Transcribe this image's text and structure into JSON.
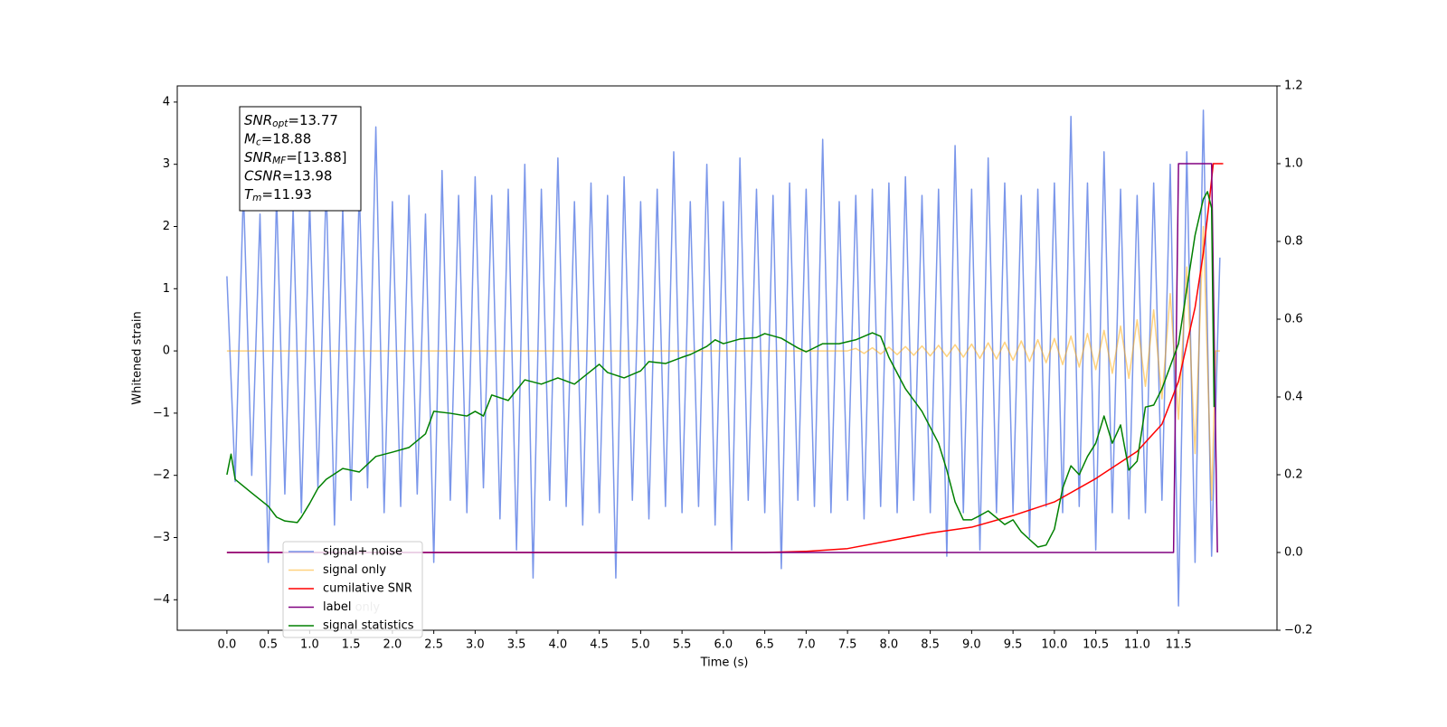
{
  "chart_data": {
    "type": "line",
    "xlabel": "Time (s)",
    "ylabel": "Whitened strain",
    "xlim": [
      -0.6,
      12.69
    ],
    "ylim": [
      -4.49,
      4.26
    ],
    "y2lim": [
      -0.2,
      1.2
    ],
    "xticks": [
      {
        "value": 0,
        "label": "0.0"
      },
      0.5,
      {
        "value": 1,
        "label": "1.0"
      },
      1.5,
      {
        "value": 2,
        "label": "2.0"
      },
      2.5,
      {
        "value": 3,
        "label": "3.0"
      },
      3.5,
      {
        "value": 4,
        "label": "4.0"
      },
      4.5,
      {
        "value": 5,
        "label": "5.0"
      },
      5.5,
      {
        "value": 6,
        "label": "6.0"
      },
      6.5,
      {
        "value": 7,
        "label": "7.0"
      },
      7.5,
      {
        "value": 8,
        "label": "8.0"
      },
      8.5,
      {
        "value": 9,
        "label": "9.0"
      },
      9.5,
      {
        "value": 10,
        "label": "10.0"
      },
      10.5,
      {
        "value": 11,
        "label": "11.0"
      },
      11.5
    ],
    "yticks": [
      {
        "value": -4,
        "label": "−4"
      },
      {
        "value": -3,
        "label": "−3"
      },
      {
        "value": -2,
        "label": "−2"
      },
      {
        "value": -1,
        "label": "−1"
      },
      0,
      1,
      2,
      3,
      4
    ],
    "y2ticks": [
      {
        "value": -0.2,
        "label": "−0.2"
      },
      {
        "value": 0,
        "label": "0.0"
      },
      0.2,
      0.4,
      0.6,
      0.8,
      {
        "value": 1,
        "label": "1.0"
      },
      1.2
    ],
    "legend": "lower left",
    "hidden_legend_text": "label only",
    "annotation": [
      {
        "base": "SNR",
        "sub": "opt",
        "rest": "=13.77"
      },
      {
        "base": "M",
        "sub": "c",
        "rest": "=18.88"
      },
      {
        "base": "SNR",
        "sub": "MF",
        "rest": "=[13.88]"
      },
      {
        "base": "CSNR",
        "sub": "",
        "rest": "=13.98"
      },
      {
        "base": "T",
        "sub": "m",
        "rest": "=11.93"
      }
    ],
    "series": [
      {
        "name": "signal+ noise",
        "color": "#4169e1",
        "opacity": 0.7,
        "x": [
          0.0,
          0.1,
          0.2,
          0.3,
          0.4,
          0.5,
          0.6,
          0.7,
          0.8,
          0.9,
          1.0,
          1.1,
          1.2,
          1.3,
          1.4,
          1.5,
          1.6,
          1.7,
          1.8,
          1.9,
          2.0,
          2.1,
          2.2,
          2.3,
          2.4,
          2.5,
          2.6,
          2.7,
          2.8,
          2.9,
          3.0,
          3.1,
          3.2,
          3.3,
          3.4,
          3.5,
          3.6,
          3.7,
          3.8,
          3.9,
          4.0,
          4.1,
          4.2,
          4.3,
          4.4,
          4.5,
          4.6,
          4.7,
          4.8,
          4.9,
          5.0,
          5.1,
          5.2,
          5.3,
          5.4,
          5.5,
          5.6,
          5.7,
          5.8,
          5.9,
          6.0,
          6.1,
          6.2,
          6.3,
          6.4,
          6.5,
          6.6,
          6.7,
          6.8,
          6.9,
          7.0,
          7.1,
          7.2,
          7.3,
          7.4,
          7.5,
          7.6,
          7.7,
          7.8,
          7.9,
          8.0,
          8.1,
          8.2,
          8.3,
          8.4,
          8.5,
          8.6,
          8.7,
          8.8,
          8.9,
          9.0,
          9.1,
          9.2,
          9.3,
          9.4,
          9.5,
          9.6,
          9.7,
          9.8,
          9.9,
          10.0,
          10.1,
          10.2,
          10.3,
          10.4,
          10.5,
          10.6,
          10.7,
          10.8,
          10.9,
          11.0,
          11.1,
          11.2,
          11.3,
          11.4,
          11.5,
          11.6,
          11.7,
          11.8,
          11.9,
          12.0
        ],
        "values": [
          1.2,
          -2.1,
          2.6,
          -2.0,
          2.2,
          -3.4,
          2.5,
          -2.3,
          2.3,
          -2.6,
          2.4,
          -2.2,
          2.7,
          -2.8,
          2.3,
          -2.4,
          2.6,
          -2.2,
          3.6,
          -2.6,
          2.4,
          -2.5,
          2.5,
          -2.3,
          2.2,
          -3.4,
          2.9,
          -2.4,
          2.5,
          -2.6,
          2.8,
          -2.2,
          2.5,
          -2.7,
          2.6,
          -3.2,
          3.0,
          -3.65,
          2.6,
          -2.4,
          3.1,
          -2.5,
          2.4,
          -2.8,
          2.7,
          -2.6,
          2.5,
          -3.65,
          2.8,
          -2.4,
          2.4,
          -2.7,
          2.6,
          -2.5,
          3.2,
          -2.6,
          2.4,
          -2.5,
          3.0,
          -2.8,
          2.4,
          -3.2,
          3.1,
          -2.4,
          2.6,
          -2.6,
          2.5,
          -3.5,
          2.7,
          -2.4,
          2.6,
          -2.5,
          3.4,
          -2.6,
          2.4,
          -2.4,
          2.5,
          -2.7,
          2.6,
          -2.5,
          2.7,
          -2.6,
          2.8,
          -2.4,
          2.5,
          -2.6,
          2.6,
          -3.3,
          3.3,
          -2.6,
          2.6,
          -3.2,
          3.1,
          -2.6,
          2.7,
          -2.6,
          2.5,
          -3.0,
          2.6,
          -2.5,
          2.7,
          -2.6,
          3.77,
          -2.5,
          2.7,
          -3.2,
          3.2,
          -2.6,
          2.6,
          -2.7,
          2.5,
          -2.6,
          2.7,
          -2.4,
          3.0,
          -4.1,
          3.2,
          -3.4,
          3.87,
          -3.3,
          1.5
        ]
      },
      {
        "name": "signal only",
        "color": "#ffa500",
        "opacity": 0.5,
        "x": [
          0.0,
          7.5,
          7.6,
          7.7,
          7.8,
          7.9,
          8.0,
          8.1,
          8.2,
          8.3,
          8.4,
          8.5,
          8.6,
          8.7,
          8.8,
          8.9,
          9.0,
          9.1,
          9.2,
          9.3,
          9.4,
          9.5,
          9.6,
          9.7,
          9.8,
          9.9,
          10.0,
          10.1,
          10.2,
          10.3,
          10.4,
          10.5,
          10.6,
          10.7,
          10.8,
          10.9,
          11.0,
          11.1,
          11.2,
          11.3,
          11.4,
          11.5,
          11.6,
          11.7,
          11.8,
          11.9,
          11.95,
          12.0
        ],
        "values": [
          0,
          0,
          0.04,
          -0.04,
          0.05,
          -0.05,
          0.06,
          -0.06,
          0.07,
          -0.07,
          0.08,
          -0.08,
          0.09,
          -0.09,
          0.1,
          -0.1,
          0.11,
          -0.12,
          0.13,
          -0.13,
          0.14,
          -0.15,
          0.16,
          -0.17,
          0.18,
          -0.19,
          0.2,
          -0.22,
          0.24,
          -0.26,
          0.28,
          -0.3,
          0.33,
          -0.36,
          0.4,
          -0.44,
          0.5,
          -0.57,
          0.66,
          -0.77,
          0.92,
          -1.1,
          1.35,
          -1.65,
          2.0,
          -2.4,
          0,
          0
        ]
      },
      {
        "name": "cumilative SNR",
        "color": "#ff0000",
        "axis": "y2",
        "x": [
          0,
          6.5,
          7.0,
          7.5,
          8.0,
          8.5,
          9.0,
          9.5,
          10.0,
          10.5,
          11.0,
          11.3,
          11.5,
          11.7,
          11.8,
          11.87,
          11.92,
          12.04
        ],
        "values": [
          0,
          0,
          0.003,
          0.01,
          0.03,
          0.05,
          0.065,
          0.095,
          0.13,
          0.19,
          0.26,
          0.33,
          0.44,
          0.63,
          0.77,
          0.9,
          1.0,
          1.0
        ]
      },
      {
        "name": "label",
        "color": "#800080",
        "axis": "y2",
        "x": [
          0,
          11.44,
          11.5,
          11.9,
          11.97
        ],
        "values": [
          0,
          0,
          1,
          1,
          0
        ]
      },
      {
        "name": "signal statistics",
        "color": "#008000",
        "axis": "y2",
        "x": [
          0,
          0.05,
          0.1,
          0.3,
          0.5,
          0.6,
          0.7,
          0.85,
          0.9,
          1.0,
          1.1,
          1.2,
          1.4,
          1.6,
          1.8,
          2.0,
          2.2,
          2.4,
          2.5,
          2.7,
          2.9,
          3.0,
          3.1,
          3.2,
          3.4,
          3.6,
          3.8,
          4.0,
          4.2,
          4.4,
          4.5,
          4.6,
          4.8,
          5.0,
          5.1,
          5.3,
          5.5,
          5.6,
          5.8,
          5.9,
          6.0,
          6.2,
          6.4,
          6.5,
          6.7,
          6.9,
          7.0,
          7.2,
          7.4,
          7.6,
          7.8,
          7.9,
          8.0,
          8.2,
          8.4,
          8.6,
          8.7,
          8.8,
          8.9,
          9.0,
          9.1,
          9.2,
          9.4,
          9.5,
          9.6,
          9.8,
          9.9,
          10.0,
          10.1,
          10.2,
          10.3,
          10.4,
          10.5,
          10.6,
          10.7,
          10.8,
          10.9,
          11.0,
          11.1,
          11.2,
          11.3,
          11.4,
          11.5,
          11.6,
          11.7,
          11.8,
          11.85,
          11.9,
          11.93
        ],
        "values": [
          0.2,
          0.253,
          0.188,
          0.153,
          0.119,
          0.091,
          0.081,
          0.077,
          0.091,
          0.126,
          0.165,
          0.188,
          0.216,
          0.207,
          0.247,
          0.258,
          0.27,
          0.305,
          0.363,
          0.358,
          0.351,
          0.363,
          0.351,
          0.405,
          0.391,
          0.444,
          0.433,
          0.449,
          0.433,
          0.467,
          0.484,
          0.463,
          0.449,
          0.467,
          0.491,
          0.486,
          0.502,
          0.509,
          0.53,
          0.547,
          0.537,
          0.549,
          0.553,
          0.563,
          0.551,
          0.526,
          0.516,
          0.537,
          0.537,
          0.547,
          0.565,
          0.556,
          0.502,
          0.421,
          0.363,
          0.281,
          0.212,
          0.13,
          0.084,
          0.084,
          0.095,
          0.107,
          0.072,
          0.084,
          0.053,
          0.014,
          0.019,
          0.06,
          0.165,
          0.223,
          0.2,
          0.247,
          0.281,
          0.351,
          0.281,
          0.328,
          0.212,
          0.235,
          0.374,
          0.379,
          0.421,
          0.479,
          0.537,
          0.677,
          0.816,
          0.909,
          0.928,
          0.886,
          0.374
        ]
      }
    ]
  }
}
